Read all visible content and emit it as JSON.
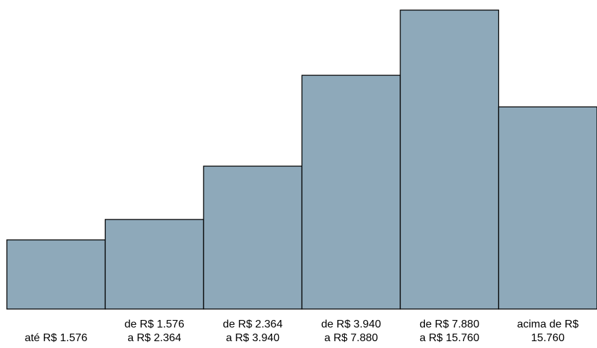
{
  "chart_data": {
    "type": "bar",
    "title": "",
    "xlabel": "",
    "ylabel": "",
    "categories": [
      [
        "até R$ 1.576"
      ],
      [
        "de R$ 1.576",
        "a R$ 2.364"
      ],
      [
        "de R$ 2.364",
        "a R$ 3.940"
      ],
      [
        "de R$ 3.940",
        "a R$ 7.880"
      ],
      [
        "de R$ 7.880",
        "a R$ 15.760"
      ],
      [
        "acima de R$",
        "15.760"
      ]
    ],
    "values": [
      10.5,
      13.6,
      21.7,
      35.5,
      45.4,
      30.7
    ],
    "ylim": [
      0,
      46
    ],
    "bar_color": "#8ea9ba",
    "edge_color": "#000000",
    "grid": false,
    "legend": "none"
  }
}
